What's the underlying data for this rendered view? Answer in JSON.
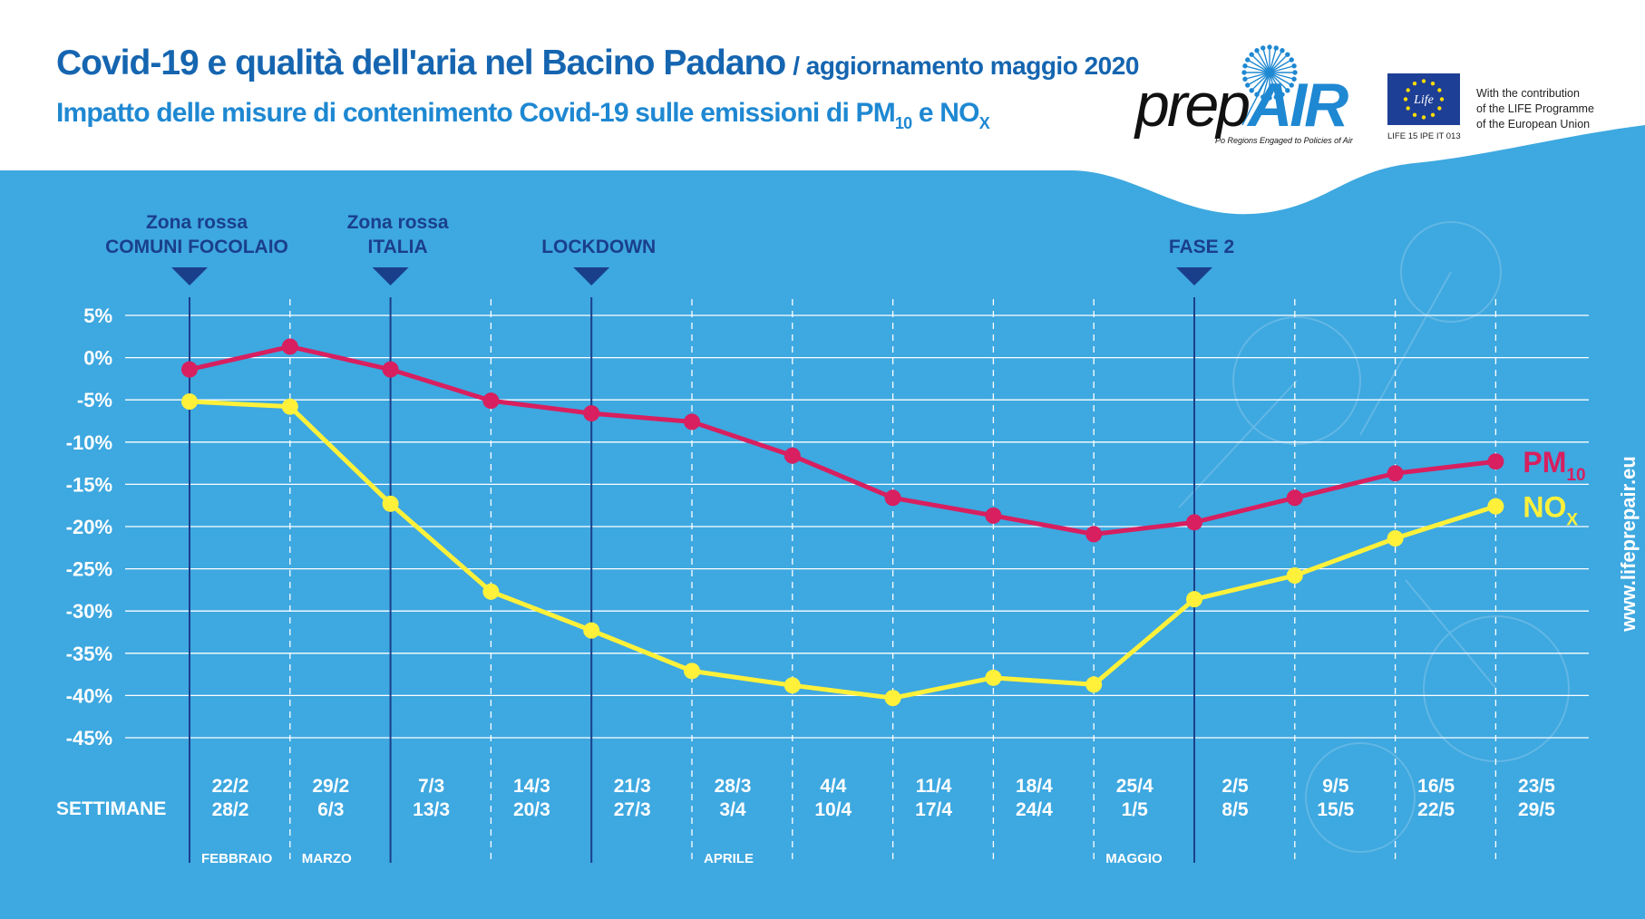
{
  "title": "Covid-19 e qualità dell'aria nel Bacino Padano",
  "update": "/ aggiornamento maggio 2020",
  "subtitle": {
    "text": "Impatto delle misure di contenimento Covid-19 sulle emissioni di PM",
    "pm_sub": "10",
    "and": " e NO",
    "nox_sub": "X"
  },
  "logo": {
    "prep": "prep",
    "air": "AIR",
    "tagline": "Po Regions Engaged to Policies of Air"
  },
  "eu": {
    "code": "LIFE 15 IPE IT 013",
    "lines": [
      "With the contribution",
      "of the LIFE Programme",
      "of the European Union"
    ],
    "life_label": "Life"
  },
  "site_url": "www.lifeprepair.eu",
  "colors": {
    "background_blue": "#3ea8e0",
    "title_blue": "#1565b0",
    "pm10": "#d81f5f",
    "nox": "#fff13a",
    "event_line": "#1a3f8a"
  },
  "chart_data": {
    "type": "line",
    "ylim": [
      -45,
      5
    ],
    "yticks": [
      5,
      0,
      -5,
      -10,
      -15,
      -20,
      -25,
      -30,
      -35,
      -40,
      -45
    ],
    "ytick_labels": [
      "5%",
      "0%",
      "-5%",
      "-10%",
      "-15%",
      "-20%",
      "-25%",
      "-30%",
      "-35%",
      "-40%",
      "-45%"
    ],
    "x_axis_label": "SETTIMANE",
    "weeks": [
      {
        "start": "22/2",
        "end": "28/2"
      },
      {
        "start": "29/2",
        "end": "6/3"
      },
      {
        "start": "7/3",
        "end": "13/3"
      },
      {
        "start": "14/3",
        "end": "20/3"
      },
      {
        "start": "21/3",
        "end": "27/3"
      },
      {
        "start": "28/3",
        "end": "3/4"
      },
      {
        "start": "4/4",
        "end": "10/4"
      },
      {
        "start": "11/4",
        "end": "17/4"
      },
      {
        "start": "18/4",
        "end": "24/4"
      },
      {
        "start": "25/4",
        "end": "1/5"
      },
      {
        "start": "2/5",
        "end": "8/5"
      },
      {
        "start": "9/5",
        "end": "15/5"
      },
      {
        "start": "16/5",
        "end": "22/5"
      },
      {
        "start": "23/5",
        "end": "29/5"
      }
    ],
    "months": [
      {
        "label": "FEBBRAIO",
        "week_index": 0
      },
      {
        "label": "MARZO",
        "week_index": 1
      },
      {
        "label": "APRILE",
        "week_index": 5
      },
      {
        "label": "MAGGIO",
        "week_index": 9
      }
    ],
    "events": [
      {
        "line1": "Zona rossa",
        "line2": "COMUNI FOCOLAIO",
        "week_index": 0
      },
      {
        "line1": "Zona rossa",
        "line2": "ITALIA",
        "week_index": 2
      },
      {
        "line1": "",
        "line2": "LOCKDOWN",
        "week_index": 4
      },
      {
        "line1": "",
        "line2": "FASE 2",
        "week_index": 10
      }
    ],
    "series": [
      {
        "name": "PM",
        "sub": "10",
        "color": "#d81f5f",
        "values": [
          -1.4,
          1.3,
          -1.4,
          -5.1,
          -6.6,
          -7.6,
          -11.6,
          -16.6,
          -18.7,
          -20.9,
          -19.5,
          -16.6,
          -13.7,
          -12.3
        ]
      },
      {
        "name": "NO",
        "sub": "X",
        "color": "#fff13a",
        "values": [
          -5.2,
          -5.8,
          -17.3,
          -27.7,
          -32.3,
          -37.1,
          -38.8,
          -40.3,
          -37.9,
          -38.7,
          -28.6,
          -25.8,
          -21.4,
          -17.6
        ]
      }
    ]
  }
}
